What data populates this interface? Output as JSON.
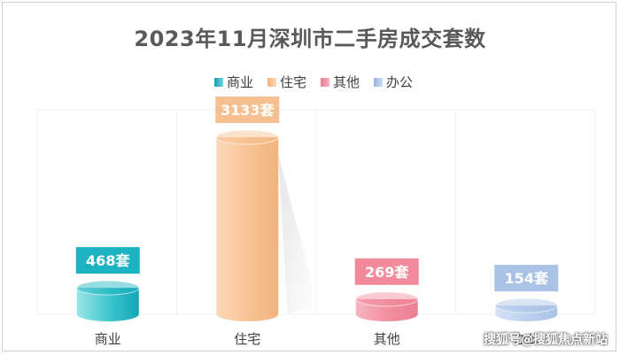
{
  "title": "2023年11月深圳市二手房成交套数",
  "watermark": "搜狐号@搜狐焦点新站",
  "legend": [
    {
      "label": "商业",
      "color": "#1bb3c1"
    },
    {
      "label": "住宅",
      "color": "#f6bf8f"
    },
    {
      "label": "其他",
      "color": "#f28a9c"
    },
    {
      "label": "办公",
      "color": "#a9c2e6"
    }
  ],
  "chart_data": {
    "type": "bar",
    "title": "2023年11月深圳市二手房成交套数",
    "categories": [
      "商业",
      "住宅",
      "其他",
      "办公"
    ],
    "values": [
      468,
      3133,
      269,
      154
    ],
    "data_labels": [
      "468套",
      "3133套",
      "269套",
      "154套"
    ],
    "colors": [
      "#1bb3c1",
      "#f6bf8f",
      "#f28a9c",
      "#a9c2e6"
    ],
    "legend_position": "top",
    "grid": false,
    "xlabel": "",
    "ylabel": ""
  }
}
